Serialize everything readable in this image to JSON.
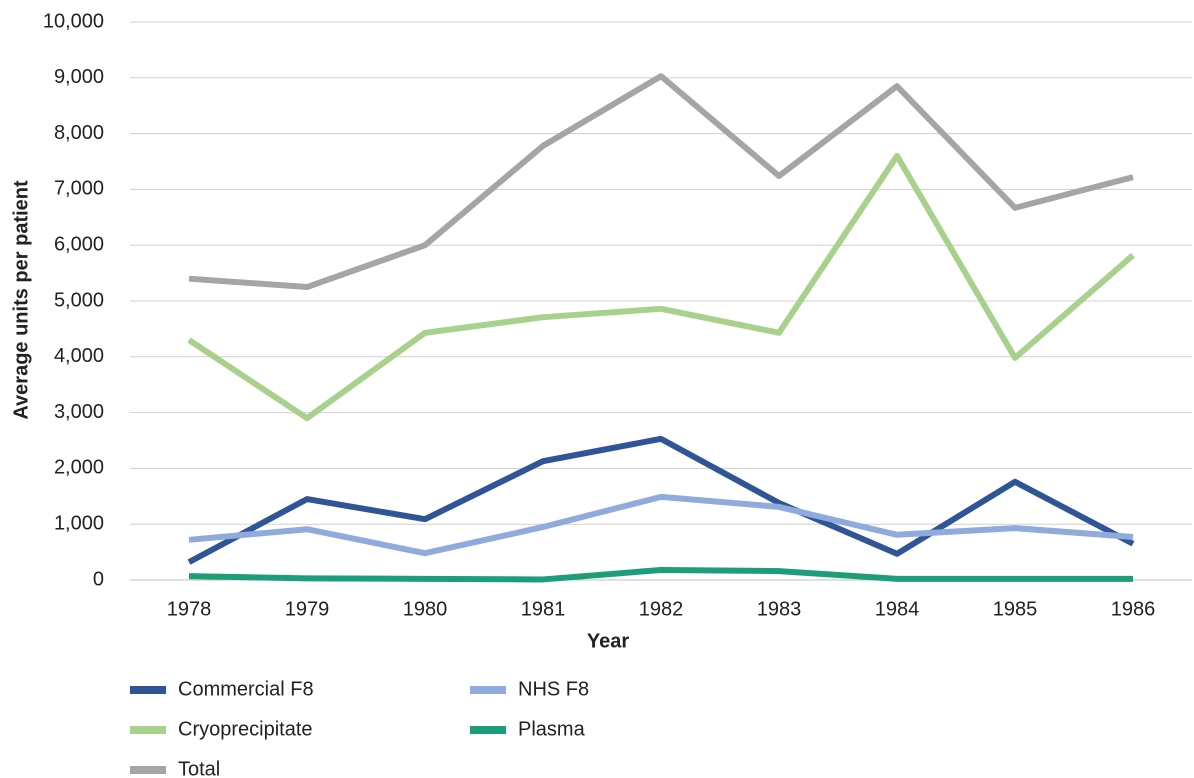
{
  "chart_data": {
    "type": "line",
    "x_label": "Year",
    "y_label": "Average units per patient",
    "categories": [
      "1978",
      "1979",
      "1980",
      "1981",
      "1982",
      "1983",
      "1984",
      "1985",
      "1986"
    ],
    "series": [
      {
        "name": "Commercial F8",
        "color": "#2f5597",
        "values": [
          320,
          1450,
          1090,
          2130,
          2530,
          1380,
          470,
          1760,
          650
        ]
      },
      {
        "name": "NHS F8",
        "color": "#8faadc",
        "values": [
          720,
          910,
          480,
          950,
          1490,
          1310,
          810,
          930,
          770
        ]
      },
      {
        "name": "Cryoprecipitate",
        "color": "#a9d18e",
        "values": [
          4300,
          2900,
          4430,
          4710,
          4860,
          4430,
          7600,
          3980,
          5820
        ]
      },
      {
        "name": "Plasma",
        "color": "#1e9e78",
        "values": [
          70,
          30,
          20,
          10,
          180,
          160,
          20,
          20,
          20
        ]
      },
      {
        "name": "Total",
        "color": "#a5a5a5",
        "values": [
          5400,
          5250,
          6000,
          7780,
          9030,
          7240,
          8850,
          6670,
          7220
        ]
      }
    ],
    "ylim": [
      0,
      10000
    ],
    "yticks": [
      0,
      {
        "value": 1000,
        "label": "1,000"
      },
      {
        "value": 2000,
        "label": "2,000"
      },
      {
        "value": 3000,
        "label": "3,000"
      },
      {
        "value": 4000,
        "label": "4,000"
      },
      {
        "value": 5000,
        "label": "5,000"
      },
      {
        "value": 6000,
        "label": "6,000"
      },
      {
        "value": 7000,
        "label": "7,000"
      },
      {
        "value": 8000,
        "label": "8,000"
      },
      {
        "value": 9000,
        "label": "9,000"
      },
      {
        "value": 10000,
        "label": "10,000"
      }
    ],
    "grid": true
  }
}
